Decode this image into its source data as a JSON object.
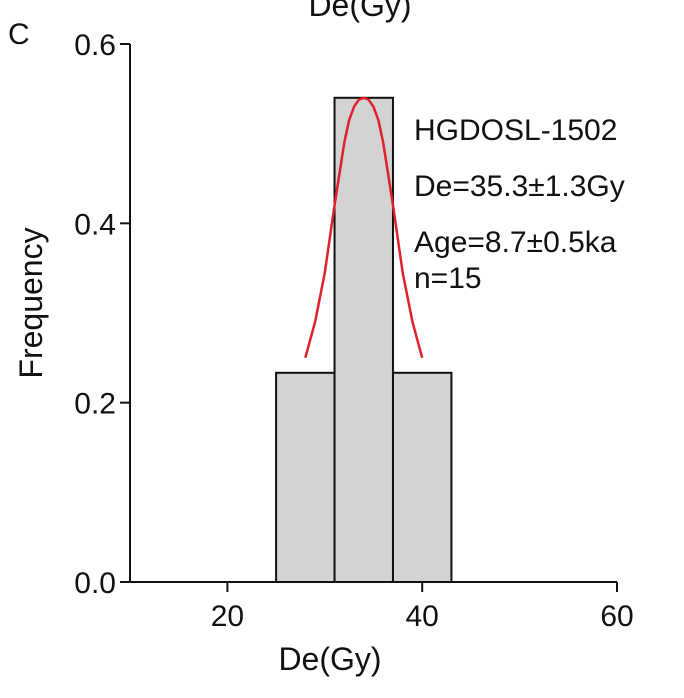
{
  "panel_label": "C",
  "chart_data": {
    "type": "bar",
    "title": "De(Gy)",
    "xlabel": "De(Gy)",
    "ylabel": "Frequency",
    "xlim": [
      10,
      60
    ],
    "ylim": [
      0,
      0.6
    ],
    "x_ticks": [
      20,
      40,
      60
    ],
    "y_ticks": [
      0.0,
      0.2,
      0.4,
      0.6
    ],
    "bins": [
      {
        "start": 25,
        "end": 31,
        "value": 0.2333
      },
      {
        "start": 31,
        "end": 37,
        "value": 0.54
      },
      {
        "start": 37,
        "end": 43,
        "value": 0.2333
      }
    ],
    "bar_color": "#d3d3d3",
    "curve": {
      "type": "normal",
      "mean": 34,
      "color": "#e0202e",
      "x_range": [
        28,
        40
      ],
      "points": [
        [
          28.0,
          0.25
        ],
        [
          29.0,
          0.29
        ],
        [
          30.0,
          0.345
        ],
        [
          31.0,
          0.42
        ],
        [
          31.5,
          0.455
        ],
        [
          32.0,
          0.49
        ],
        [
          32.5,
          0.515
        ],
        [
          33.0,
          0.53
        ],
        [
          33.5,
          0.538
        ],
        [
          34.0,
          0.54
        ],
        [
          34.5,
          0.538
        ],
        [
          35.0,
          0.53
        ],
        [
          35.5,
          0.515
        ],
        [
          36.0,
          0.49
        ],
        [
          36.5,
          0.455
        ],
        [
          37.0,
          0.42
        ],
        [
          38.0,
          0.345
        ],
        [
          39.0,
          0.29
        ],
        [
          40.0,
          0.25
        ]
      ]
    },
    "grid": false,
    "annotations": [
      "HGDOSL-1502",
      "De=35.3±1.3Gy",
      "Age=8.7±0.5ka",
      "n=15"
    ]
  }
}
